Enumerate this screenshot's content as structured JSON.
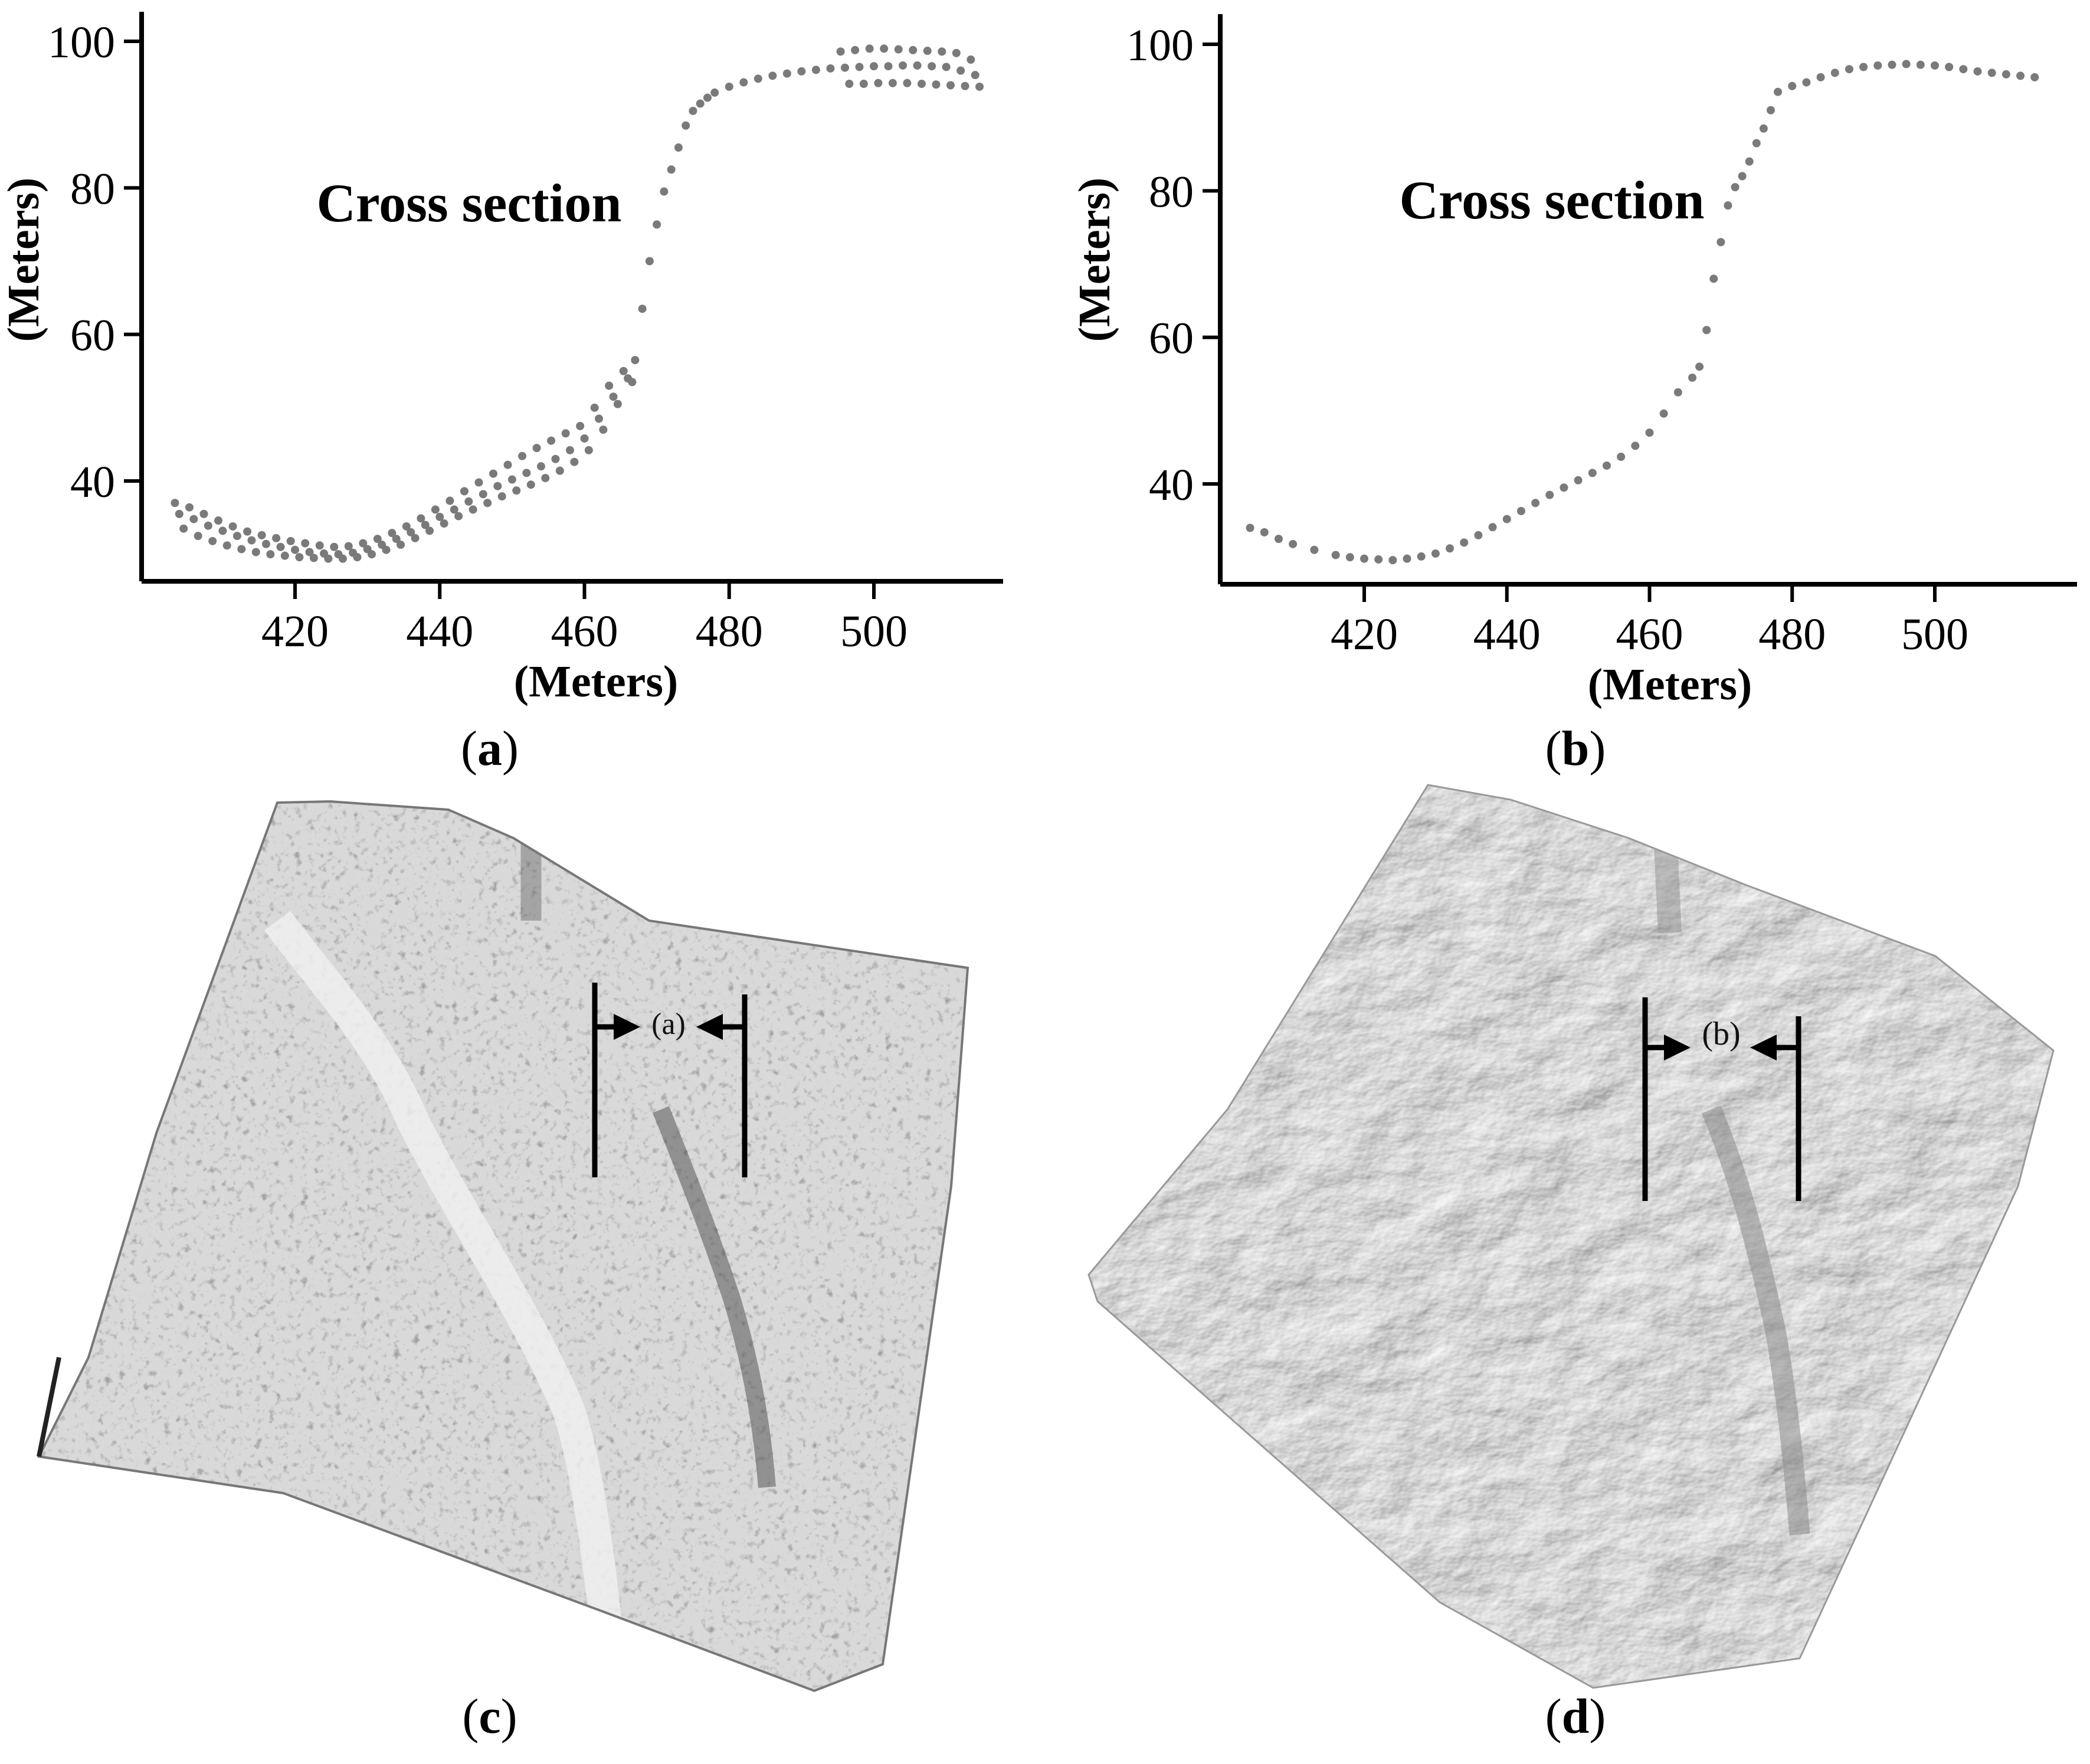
{
  "panels": {
    "a": {
      "caption_open": "(",
      "caption_letter": "a",
      "caption_close": ")"
    },
    "b": {
      "caption_open": "(",
      "caption_letter": "b",
      "caption_close": ")"
    },
    "c": {
      "caption_open": "(",
      "caption_letter": "c",
      "caption_close": ")",
      "marker_label": "(a)"
    },
    "d": {
      "caption_open": "(",
      "caption_letter": "d",
      "caption_close": ")",
      "marker_label": "(b)"
    }
  },
  "colors": {
    "points": "#7a7a7a",
    "axis": "#000000"
  },
  "chart_data": [
    {
      "type": "scatter",
      "panel": "a",
      "title": "",
      "annotation": "Cross section",
      "xlabel": "(Meters)",
      "ylabel": "(Meters)",
      "xlim": [
        402,
        516
      ],
      "ylim": [
        28,
        104
      ],
      "xticks": [
        420,
        440,
        460,
        480,
        500
      ],
      "yticks": [
        40,
        60,
        80,
        100
      ],
      "grid": false,
      "x": [
        404,
        406,
        408,
        410,
        412,
        414,
        416,
        418,
        420,
        422,
        424,
        426,
        428,
        430,
        432,
        434,
        436,
        438,
        440,
        442,
        444,
        446,
        448,
        450,
        452,
        454,
        456,
        458,
        460,
        462,
        464,
        466,
        467,
        468,
        469,
        470,
        471,
        472,
        473,
        474,
        475,
        476,
        477,
        478,
        480,
        482,
        484,
        486,
        488,
        490,
        492,
        494,
        496,
        498,
        500,
        502,
        504,
        506,
        508,
        510,
        512,
        514
      ],
      "y": [
        35.5,
        34.8,
        33.9,
        33.2,
        32.5,
        31.9,
        31.4,
        31.0,
        30.6,
        30.3,
        30.1,
        30.0,
        30.2,
        30.7,
        31.3,
        32.1,
        33.0,
        34.0,
        35.1,
        36.1,
        37.2,
        38.2,
        39.3,
        40.2,
        41.1,
        42.0,
        43.0,
        44.2,
        45.8,
        48.5,
        51.5,
        54.0,
        56.5,
        63.5,
        70.0,
        75.0,
        79.5,
        82.5,
        85.5,
        88.5,
        90.5,
        91.5,
        92.3,
        93.0,
        93.8,
        94.4,
        94.9,
        95.3,
        95.6,
        95.9,
        96.1,
        96.3,
        96.4,
        96.5,
        96.6,
        96.6,
        96.7,
        96.7,
        96.6,
        96.5,
        96.0,
        95.4
      ],
      "y_lower": [
        33.5,
        32.5,
        31.8,
        31.2,
        30.7,
        30.3,
        30.0,
        29.8,
        29.6,
        29.5,
        29.4,
        29.4,
        29.6,
        30.0,
        30.6,
        31.3,
        32.2,
        33.2,
        34.2,
        35.2,
        36.1,
        37.0,
        37.9,
        38.7,
        39.5,
        40.4,
        41.4,
        42.6,
        44.2,
        47.0,
        50.5,
        53.5,
        0,
        0,
        0,
        0,
        0,
        0,
        0,
        0,
        0,
        0,
        0,
        0,
        0,
        0,
        0,
        0,
        0,
        0,
        0,
        0,
        94.2,
        94.2,
        94.3,
        94.3,
        94.3,
        94.2,
        94.1,
        94.0,
        93.9,
        93.8
      ],
      "y_upper": [
        37.0,
        36.4,
        35.5,
        34.6,
        33.8,
        33.1,
        32.6,
        32.2,
        31.8,
        31.5,
        31.2,
        31.0,
        31.1,
        31.5,
        32.1,
        32.9,
        33.8,
        34.9,
        36.1,
        37.3,
        38.6,
        39.8,
        41.0,
        42.2,
        43.4,
        44.5,
        45.5,
        46.5,
        47.5,
        50.0,
        53.0,
        55.0,
        0,
        0,
        0,
        0,
        0,
        0,
        0,
        0,
        0,
        0,
        0,
        0,
        0,
        0,
        0,
        0,
        0,
        0,
        0,
        0,
        98.6,
        98.8,
        99.0,
        99.0,
        98.9,
        98.8,
        98.7,
        98.6,
        98.4,
        97.5
      ]
    },
    {
      "type": "scatter",
      "panel": "b",
      "title": "",
      "annotation": "Cross section",
      "xlabel": "(Meters)",
      "ylabel": "(Meters)",
      "xlim": [
        402,
        516
      ],
      "ylim": [
        28,
        104
      ],
      "xticks": [
        420,
        440,
        460,
        480,
        500
      ],
      "yticks": [
        40,
        60,
        80,
        100
      ],
      "grid": false,
      "x": [
        404,
        406,
        408,
        410,
        413,
        416,
        418,
        420,
        422,
        424,
        426,
        428,
        430,
        432,
        434,
        436,
        438,
        440,
        442,
        444,
        446,
        448,
        450,
        452,
        454,
        456,
        458,
        460,
        462,
        464,
        466,
        467,
        468,
        469,
        470,
        471,
        472,
        473,
        474,
        475,
        476,
        477,
        478,
        480,
        482,
        484,
        486,
        488,
        490,
        492,
        494,
        496,
        498,
        500,
        502,
        504,
        506,
        508,
        510,
        512,
        514
      ],
      "y": [
        34.0,
        33.4,
        32.5,
        31.8,
        31.0,
        30.3,
        30.0,
        29.8,
        29.7,
        29.6,
        29.8,
        30.1,
        30.5,
        31.2,
        32.0,
        33.0,
        34.1,
        35.2,
        36.3,
        37.4,
        38.5,
        39.5,
        40.5,
        41.5,
        42.5,
        43.7,
        45.2,
        47.0,
        49.6,
        52.5,
        54.5,
        56.0,
        61.0,
        68.0,
        73.0,
        78.0,
        80.5,
        82.0,
        84.0,
        86.5,
        88.5,
        91.0,
        93.5,
        94.3,
        94.8,
        95.5,
        96.1,
        96.6,
        96.9,
        97.1,
        97.2,
        97.3,
        97.2,
        97.1,
        96.9,
        96.6,
        96.3,
        96.1,
        95.9,
        95.7,
        95.5
      ]
    }
  ]
}
